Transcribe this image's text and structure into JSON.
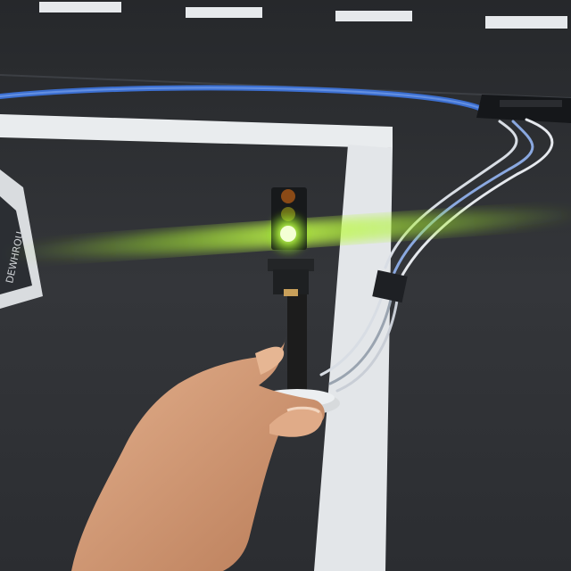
{
  "scene": {
    "description_tags": [
      "traffic-light-model",
      "arduino-board",
      "usb-cable",
      "hand",
      "road-mat"
    ],
    "active_light": "green",
    "colors": {
      "mat": "#2f3135",
      "lane_paint": "#e9ecee",
      "cable": "#3c6fd0",
      "green_glow": "#b8ff3a",
      "red_lens": "#8a4a16",
      "yellow_lens": "#6b6a1a",
      "skin": "#d8a27e",
      "pole": "#1c1c1c"
    },
    "card_text": "DEWHROU"
  }
}
